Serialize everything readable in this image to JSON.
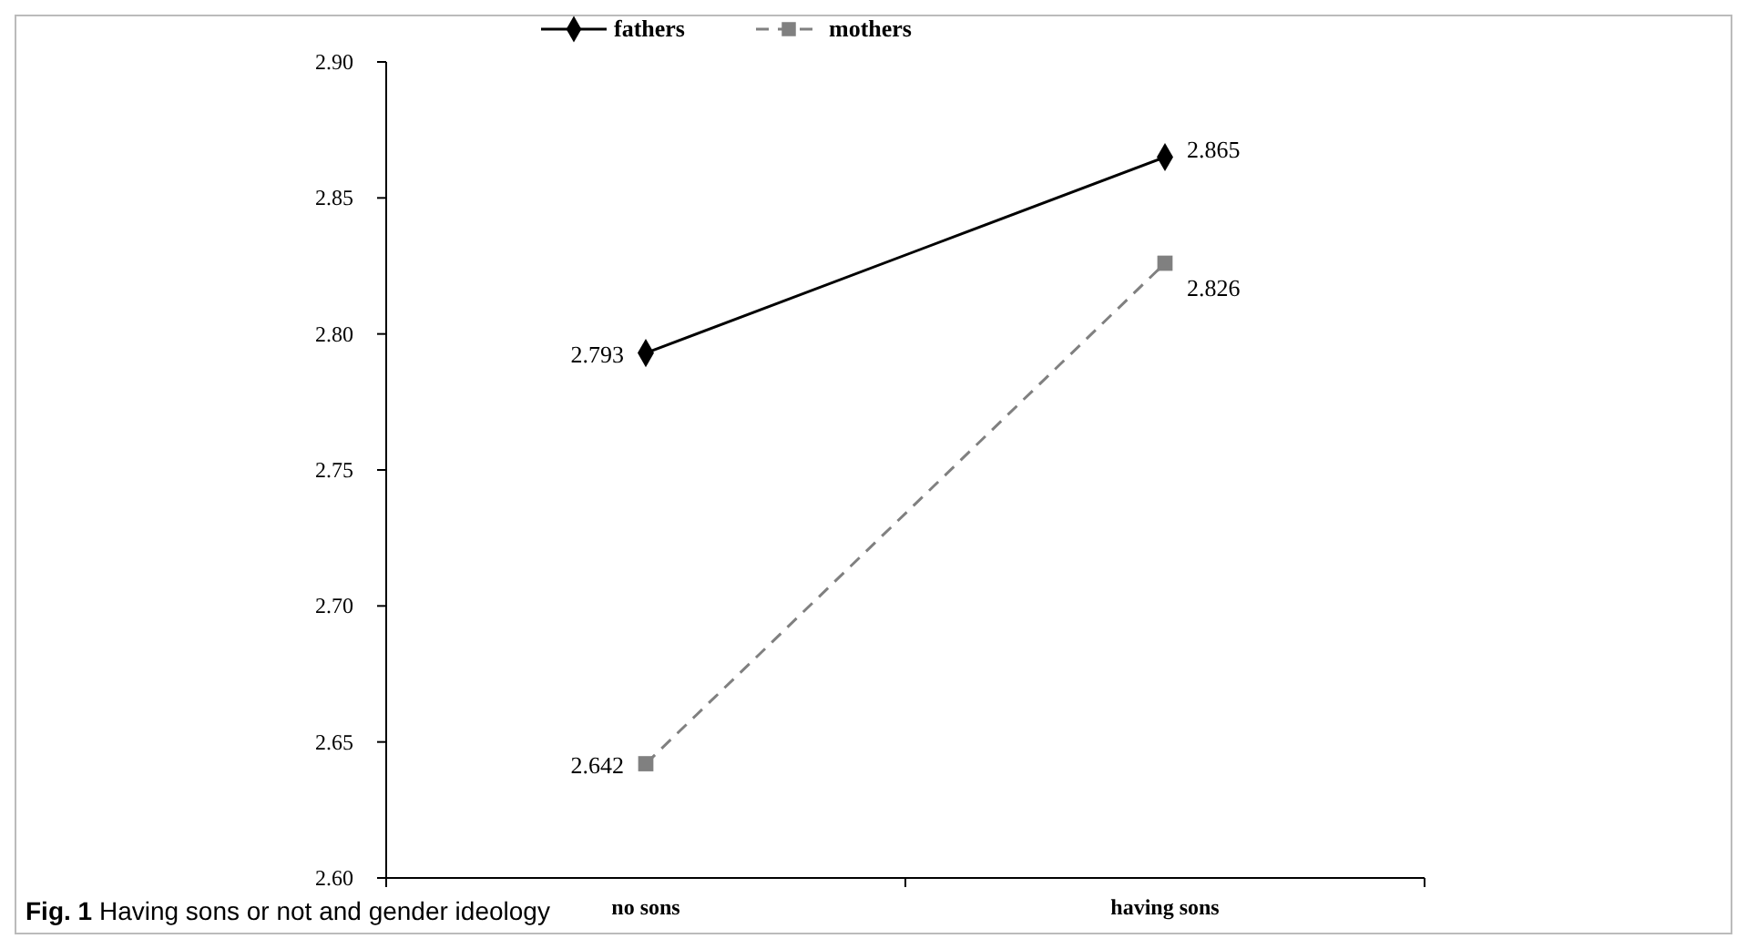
{
  "chart_data": {
    "type": "line",
    "categories": [
      "no sons",
      "having sons"
    ],
    "series": [
      {
        "name": "fathers",
        "color": "#000000",
        "values": [
          2.793,
          2.865
        ],
        "marker": "diamond",
        "line_style": "solid"
      },
      {
        "name": "mothers",
        "color": "#808080",
        "values": [
          2.642,
          2.826
        ],
        "marker": "square",
        "line_style": "dashed"
      }
    ],
    "ylim": [
      2.6,
      2.9
    ],
    "yticks": [
      {
        "value": 2.6,
        "label": "2.60"
      },
      {
        "value": 2.65,
        "label": "2.65"
      },
      {
        "value": 2.7,
        "label": "2.70"
      },
      {
        "value": 2.75,
        "label": "2.75"
      },
      {
        "value": 2.8,
        "label": "2.80"
      },
      {
        "value": 2.85,
        "label": "2.85"
      },
      {
        "value": 2.9,
        "label": "2.90"
      }
    ],
    "data_labels": true,
    "legend": "top left",
    "grid": false,
    "annotations": [
      "Fig. 1 Having sons or not and gender ideology"
    ]
  }
}
